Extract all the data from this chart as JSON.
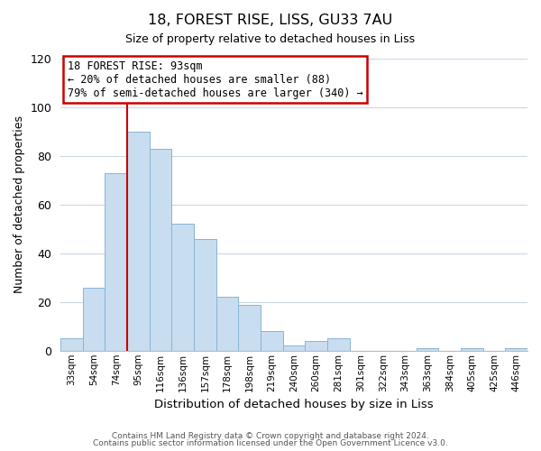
{
  "title": "18, FOREST RISE, LISS, GU33 7AU",
  "subtitle": "Size of property relative to detached houses in Liss",
  "xlabel": "Distribution of detached houses by size in Liss",
  "ylabel": "Number of detached properties",
  "bar_labels": [
    "33sqm",
    "54sqm",
    "74sqm",
    "95sqm",
    "116sqm",
    "136sqm",
    "157sqm",
    "178sqm",
    "198sqm",
    "219sqm",
    "240sqm",
    "260sqm",
    "281sqm",
    "301sqm",
    "322sqm",
    "343sqm",
    "363sqm",
    "384sqm",
    "405sqm",
    "425sqm",
    "446sqm"
  ],
  "bar_values": [
    5,
    26,
    73,
    90,
    83,
    52,
    46,
    22,
    19,
    8,
    2,
    4,
    5,
    0,
    0,
    0,
    1,
    0,
    1,
    0,
    1
  ],
  "bar_color": "#c8ddef",
  "bar_edge_color": "#8ab4d4",
  "ylim": [
    0,
    120
  ],
  "yticks": [
    0,
    20,
    40,
    60,
    80,
    100,
    120
  ],
  "vline_x_index": 3,
  "vline_color": "#cc0000",
  "annotation_title": "18 FOREST RISE: 93sqm",
  "annotation_line1": "← 20% of detached houses are smaller (88)",
  "annotation_line2": "79% of semi-detached houses are larger (340) →",
  "footer1": "Contains HM Land Registry data © Crown copyright and database right 2024.",
  "footer2": "Contains public sector information licensed under the Open Government Licence v3.0.",
  "background_color": "#ffffff",
  "grid_color": "#c8d8e8"
}
